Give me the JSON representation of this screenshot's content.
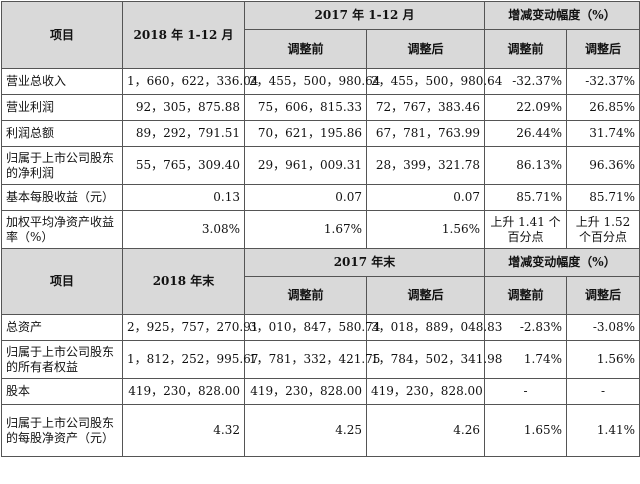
{
  "income_section": {
    "header": {
      "item": "项目",
      "period_2018": "2018 年 1-12 月",
      "period_2017": "2017 年 1-12 月",
      "change": "增减变动幅度（%）",
      "before_adj": "调整前",
      "after_adj": "调整后",
      "change_before": "调整前",
      "change_after": "调整后"
    },
    "rows": [
      {
        "label": "营业总收入",
        "v2018": "1，660，622，336.04",
        "before": "2，455，500，980.64",
        "after": "2，455，500，980.64",
        "chg_before": "-32.37%",
        "chg_after": "-32.37%"
      },
      {
        "label": "营业利润",
        "v2018": "92，305，875.88",
        "before": "75，606，815.33",
        "after": "72，767，383.46",
        "chg_before": "22.09%",
        "chg_after": "26.85%"
      },
      {
        "label": "利润总额",
        "v2018": "89，292，791.51",
        "before": "70，621，195.86",
        "after": "67，781，763.99",
        "chg_before": "26.44%",
        "chg_after": "31.74%"
      },
      {
        "label": "归属于上市公司股东的净利润",
        "v2018": "55，765，309.40",
        "before": "29，961，009.31",
        "after": "28，399，321.78",
        "chg_before": "86.13%",
        "chg_after": "96.36%"
      },
      {
        "label": "基本每股收益（元）",
        "v2018": "0.13",
        "before": "0.07",
        "after": "0.07",
        "chg_before": "85.71%",
        "chg_after": "85.71%"
      },
      {
        "label": "加权平均净资产收益率（%）",
        "v2018": "3.08%",
        "before": "1.67%",
        "after": "1.56%",
        "chg_before": "上升 1.41 个百分点",
        "chg_after": "上升 1.52 个百分点"
      }
    ]
  },
  "balance_section": {
    "header": {
      "item": "项目",
      "period_2018": "2018 年末",
      "period_2017": "2017 年末",
      "change": "增减变动幅度（%）",
      "before_adj": "调整前",
      "after_adj": "调整后",
      "change_before": "调整前",
      "change_after": "调整后"
    },
    "rows": [
      {
        "label": "总资产",
        "v2018": "2，925，757，270.91",
        "before": "3，010，847，580.74",
        "after": "3，018，889，048.83",
        "chg_before": "-2.83%",
        "chg_after": "-3.08%"
      },
      {
        "label": "归属于上市公司股东的所有者权益",
        "v2018": "1，812，252，995.67",
        "before": "1，781，332，421.75",
        "after": "1，784，502，341.98",
        "chg_before": "1.74%",
        "chg_after": "1.56%"
      },
      {
        "label": "股本",
        "v2018": "419，230，828.00",
        "before": "419，230，828.00",
        "after": "419，230，828.00",
        "chg_before": "-",
        "chg_after": "-"
      },
      {
        "label": "归属于上市公司股东的每股净资产（元）",
        "v2018": "4.32",
        "before": "4.25",
        "after": "4.26",
        "chg_before": "1.65%",
        "chg_after": "1.41%"
      }
    ]
  }
}
